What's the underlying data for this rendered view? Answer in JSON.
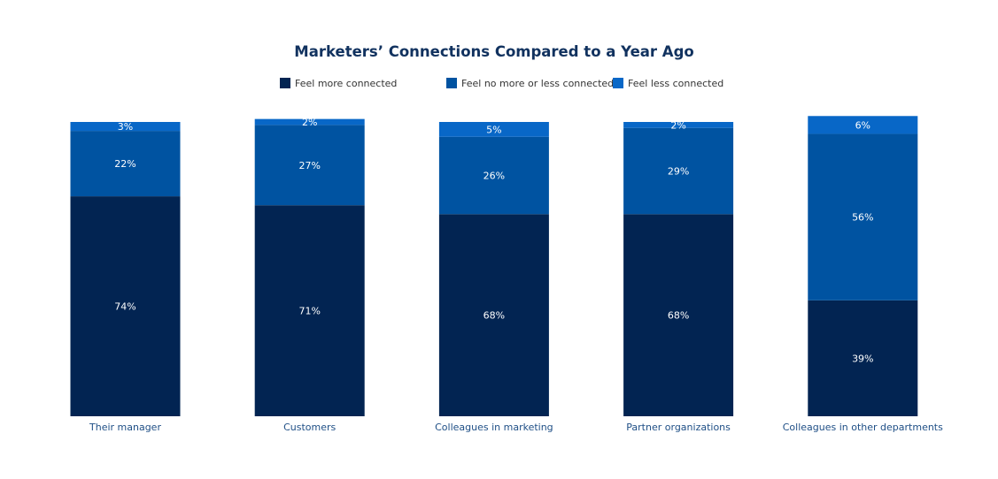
{
  "chart_data": {
    "type": "bar",
    "stacked": true,
    "title": "Marketers’ Connections Compared to a Year Ago",
    "categories": [
      "Their manager",
      "Customers",
      "Colleagues in marketing",
      "Partner organizations",
      "Colleagues in other departments"
    ],
    "series": [
      {
        "name": "Feel more connected",
        "color": "#022452",
        "values": [
          74,
          71,
          68,
          68,
          39
        ],
        "labels": [
          "74%",
          "71%",
          "68%",
          "68%",
          "39%"
        ]
      },
      {
        "name": "Feel no more or less connected",
        "color": "#0053a1",
        "values": [
          22,
          27,
          26,
          29,
          56
        ],
        "labels": [
          "22%",
          "27%",
          "26%",
          "29%",
          "56%"
        ]
      },
      {
        "name": "Feel less connected",
        "color": "#0867c7",
        "values": [
          3,
          2,
          5,
          2,
          6
        ],
        "labels": [
          "3%",
          "2%",
          "5%",
          "2%",
          "6%"
        ]
      }
    ],
    "ylim": [
      0,
      99
    ],
    "grid": false,
    "legend_position": "top"
  }
}
